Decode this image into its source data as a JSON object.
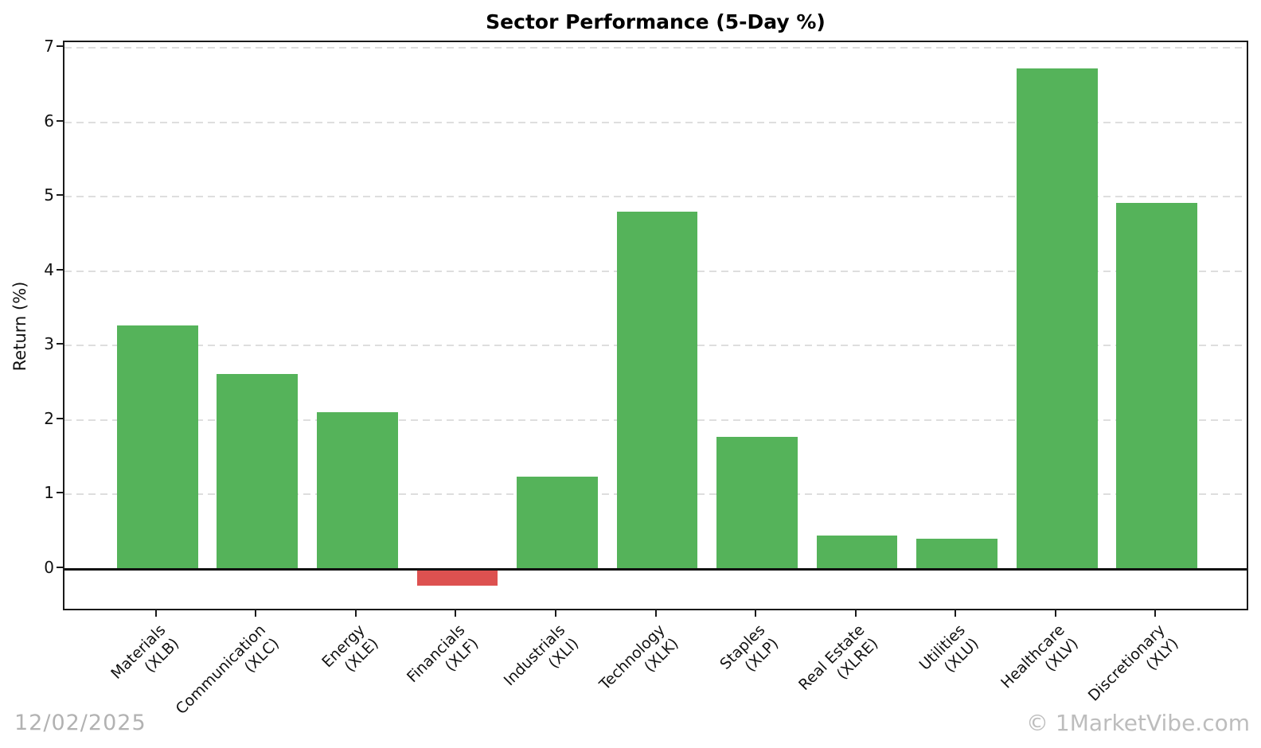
{
  "title": "Sector Performance (5-Day %)",
  "footer": {
    "date": "12/02/2025",
    "watermark": "© 1MarketVibe.com"
  },
  "colors": {
    "positive_bar": "#55b35a",
    "negative_bar": "#dd5150",
    "grid": "#dedede",
    "axis": "#1a1a1a",
    "footer_text": "#b2b2b2"
  },
  "chart_data": {
    "type": "bar",
    "title": "Sector Performance (5-Day %)",
    "xlabel": "",
    "ylabel": "Return (%)",
    "categories": [
      {
        "sector": "Materials",
        "ticker": "(XLB)"
      },
      {
        "sector": "Communication",
        "ticker": "(XLC)"
      },
      {
        "sector": "Energy",
        "ticker": "(XLE)"
      },
      {
        "sector": "Financials",
        "ticker": "(XLF)"
      },
      {
        "sector": "Industrials",
        "ticker": "(XLI)"
      },
      {
        "sector": "Technology",
        "ticker": "(XLK)"
      },
      {
        "sector": "Staples",
        "ticker": "(XLP)"
      },
      {
        "sector": "Real Estate",
        "ticker": "(XLRE)"
      },
      {
        "sector": "Utilities",
        "ticker": "(XLU)"
      },
      {
        "sector": "Healthcare",
        "ticker": "(XLV)"
      },
      {
        "sector": "Discretionary",
        "ticker": "(XLY)"
      }
    ],
    "values": [
      3.27,
      2.62,
      2.1,
      -0.23,
      1.24,
      4.8,
      1.77,
      0.45,
      0.4,
      6.73,
      4.92
    ],
    "yticks": [
      0,
      1,
      2,
      3,
      4,
      5,
      6,
      7
    ],
    "ylim": [
      -0.58,
      7.08
    ],
    "grid": "horizontal-dashed",
    "legend": "none",
    "bar_width_fraction": 0.81,
    "side_margin_fraction": 0.93
  }
}
